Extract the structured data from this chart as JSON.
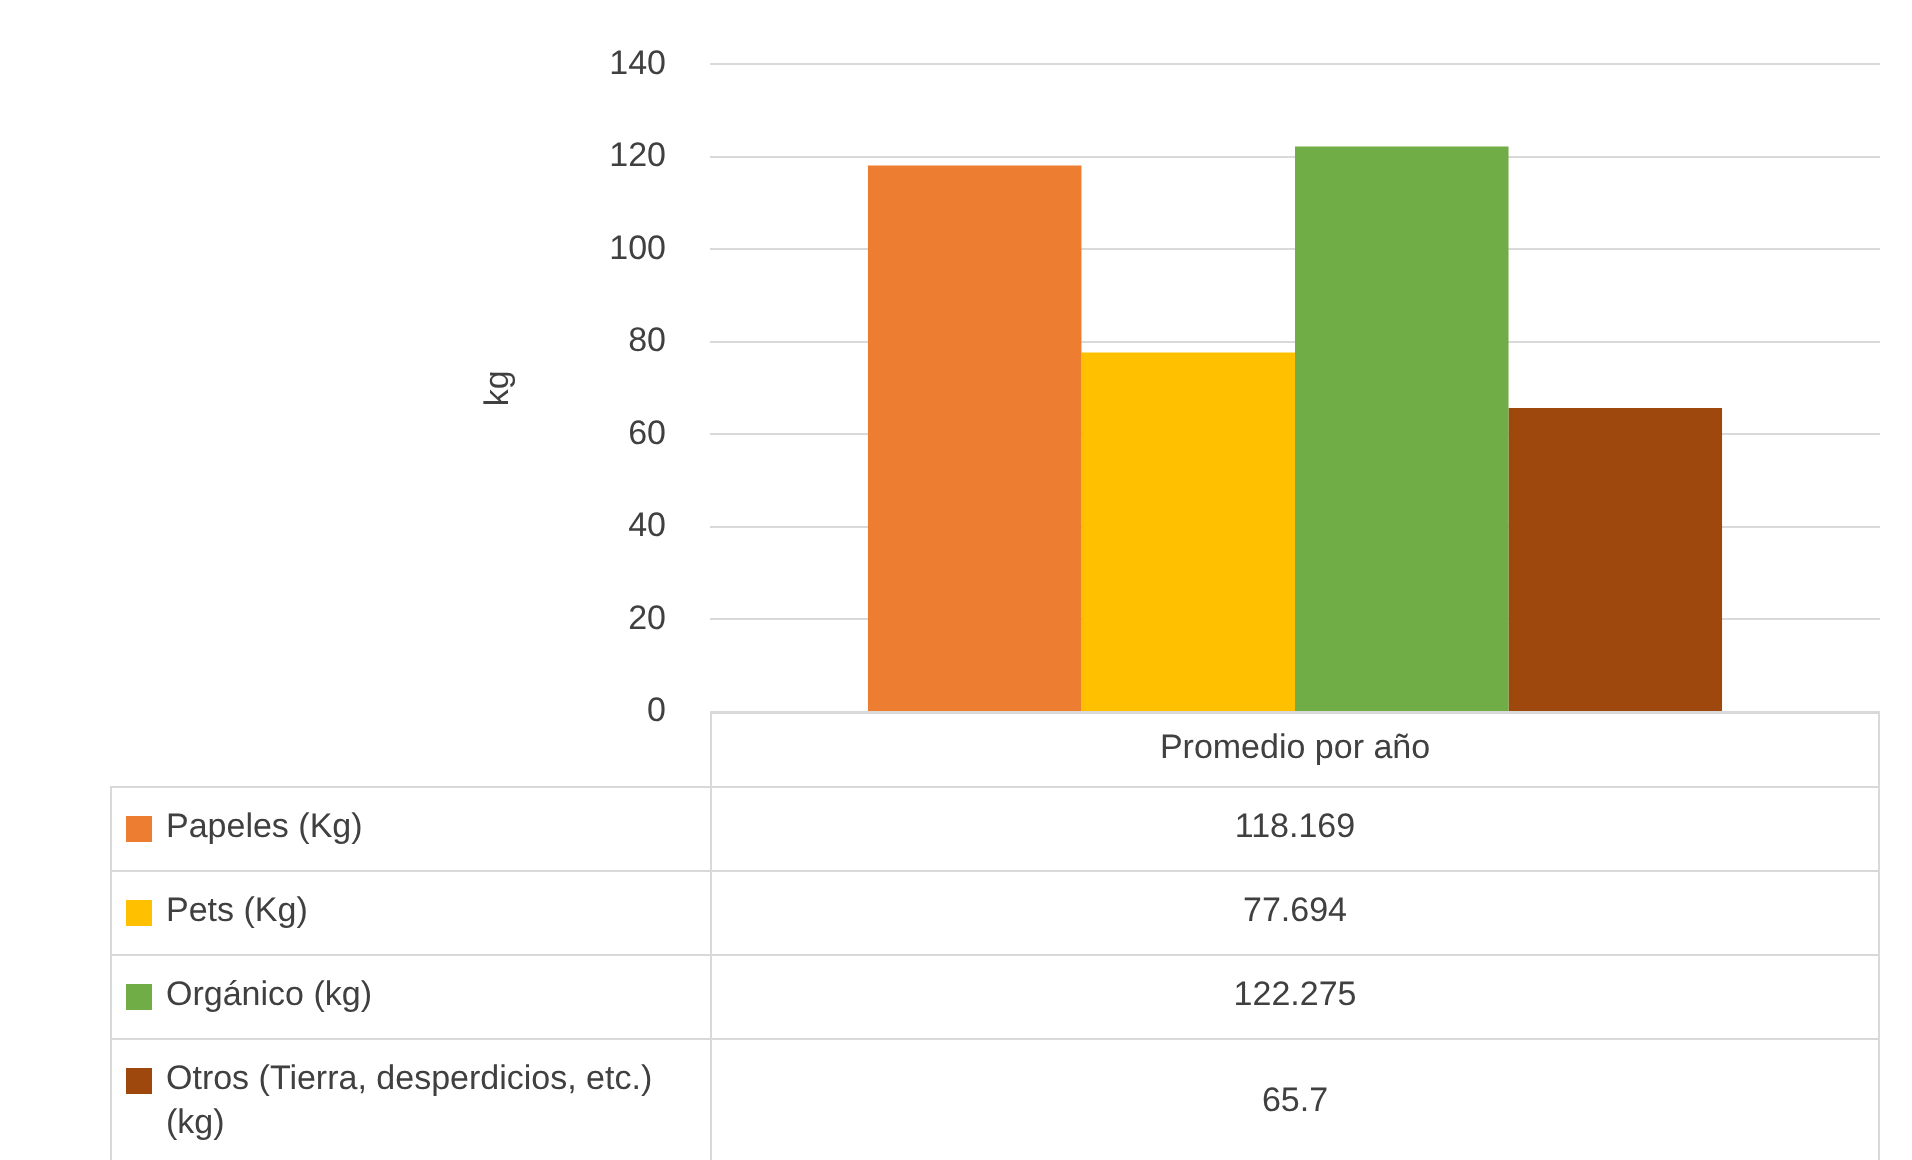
{
  "chart_data": {
    "type": "bar",
    "ylabel": "kg",
    "categories": [
      "Promedio por año"
    ],
    "series": [
      {
        "name": "Papeles (Kg)",
        "color": "#ed7d31",
        "values": [
          118.169
        ]
      },
      {
        "name": "Pets (Kg)",
        "color": "#ffc000",
        "values": [
          77.694
        ]
      },
      {
        "name": "Orgánico (kg)",
        "color": "#70ad47",
        "values": [
          122.275
        ]
      },
      {
        "name": "Otros (Tierra, desperdicios, etc.) (kg)",
        "color": "#9e480e",
        "values": [
          65.7
        ]
      }
    ],
    "ylim": [
      0,
      140
    ],
    "yticks": [
      0,
      20,
      40,
      60,
      80,
      100,
      120,
      140
    ],
    "grid": "y",
    "legend": "bottom",
    "annotations": [
      "118.169",
      "77.694",
      "122.275",
      "65.7"
    ]
  }
}
